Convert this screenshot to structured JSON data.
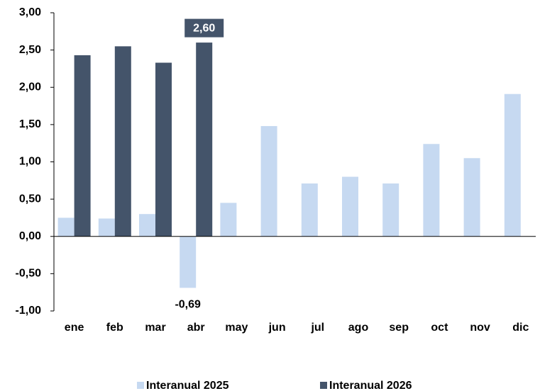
{
  "chart_data": {
    "type": "bar",
    "categories": [
      "ene",
      "feb",
      "mar",
      "abr",
      "may",
      "jun",
      "jul",
      "ago",
      "sep",
      "oct",
      "nov",
      "dic"
    ],
    "series": [
      {
        "name": "Interanual 2025",
        "color": "#c6d9f1",
        "values": [
          0.25,
          0.24,
          0.3,
          -0.69,
          0.45,
          1.48,
          0.71,
          0.8,
          0.71,
          1.24,
          1.05,
          1.91
        ],
        "value_labels": [
          null,
          null,
          null,
          "-0,69",
          null,
          null,
          null,
          null,
          null,
          null,
          null,
          null
        ]
      },
      {
        "name": "Interanual 2026",
        "color": "#44546a",
        "values": [
          2.43,
          2.55,
          2.33,
          2.6,
          null,
          null,
          null,
          null,
          null,
          null,
          null,
          null
        ],
        "value_labels": [
          null,
          null,
          null,
          "2,60",
          null,
          null,
          null,
          null,
          null,
          null,
          null,
          null
        ]
      }
    ],
    "ylim": [
      -1,
      3
    ],
    "yticks": [
      {
        "value": -1,
        "label": "-1,00"
      },
      {
        "value": -0.5,
        "label": "-0,50"
      },
      {
        "value": 0,
        "label": "0,00"
      },
      {
        "value": 0.5,
        "label": "0,50"
      },
      {
        "value": 1,
        "label": "1,00"
      },
      {
        "value": 1.5,
        "label": "1,50"
      },
      {
        "value": 2,
        "label": "2,00"
      },
      {
        "value": 2.5,
        "label": "2,50"
      },
      {
        "value": 3,
        "label": "3,00"
      }
    ],
    "grid": false,
    "legend": "bottom"
  }
}
